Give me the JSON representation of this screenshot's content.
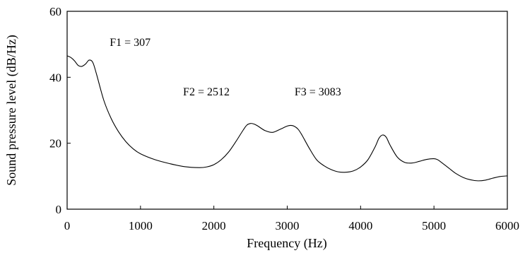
{
  "chart_data": {
    "type": "line",
    "xlabel": "Frequency (Hz)",
    "ylabel": "Sound pressure level (dB/Hz)",
    "xlim": [
      0,
      6000
    ],
    "ylim": [
      0,
      60
    ],
    "xticks": [
      "0",
      "1000",
      "2000",
      "3000",
      "4000",
      "5000",
      "6000"
    ],
    "yticks": [
      "0",
      "20",
      "40",
      "60"
    ],
    "grid": false,
    "annotations": [
      {
        "text": "F1 = 307",
        "x": 580,
        "y": 49.5
      },
      {
        "text": "F2 = 2512",
        "x": 1580,
        "y": 34.5
      },
      {
        "text": "F3 = 3083",
        "x": 3100,
        "y": 34.5
      }
    ],
    "series": [
      {
        "x": [
          0,
          50,
          100,
          150,
          200,
          250,
          300,
          350,
          400,
          500,
          600,
          700,
          800,
          900,
          1000,
          1200,
          1400,
          1600,
          1800,
          1900,
          2000,
          2100,
          2200,
          2300,
          2400,
          2450,
          2500,
          2550,
          2600,
          2700,
          2800,
          2900,
          3000,
          3050,
          3100,
          3150,
          3200,
          3300,
          3400,
          3500,
          3600,
          3700,
          3800,
          3900,
          4000,
          4100,
          4200,
          4250,
          4300,
          4350,
          4400,
          4500,
          4600,
          4700,
          4800,
          4900,
          5000,
          5050,
          5100,
          5200,
          5300,
          5400,
          5500,
          5600,
          5700,
          5800,
          5900,
          6000
        ],
        "y": [
          46.5,
          46.0,
          45.0,
          43.6,
          43.3,
          44.0,
          45.2,
          44.5,
          41.0,
          33.0,
          27.5,
          23.5,
          20.5,
          18.3,
          16.8,
          15.0,
          13.8,
          12.9,
          12.6,
          12.8,
          13.5,
          15.0,
          17.3,
          20.5,
          24.0,
          25.5,
          26.0,
          25.8,
          25.2,
          23.8,
          23.3,
          24.2,
          25.2,
          25.4,
          25.1,
          24.2,
          22.5,
          18.5,
          15.0,
          13.2,
          12.0,
          11.3,
          11.2,
          11.6,
          12.8,
          15.0,
          19.0,
          21.5,
          22.5,
          21.8,
          19.5,
          15.8,
          14.2,
          14.0,
          14.5,
          15.1,
          15.3,
          15.0,
          14.2,
          12.5,
          10.8,
          9.6,
          8.9,
          8.6,
          8.8,
          9.4,
          9.9,
          10.1
        ]
      }
    ]
  }
}
